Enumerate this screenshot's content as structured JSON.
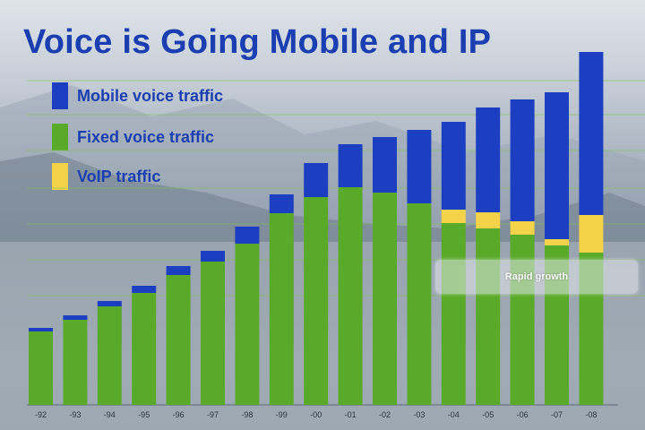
{
  "chart_data": {
    "type": "bar",
    "stacked": true,
    "title": "Voice is Going Mobile and IP",
    "categories": [
      "-92",
      "-93",
      "-94",
      "-95",
      "-96",
      "-97",
      "-98",
      "-99",
      "-00",
      "-01",
      "-02",
      "-03",
      "-04",
      "-05",
      "-06",
      "-07",
      "-08"
    ],
    "series": [
      {
        "name": "Fixed voice traffic",
        "color": "#5aaa2a",
        "values": [
          82,
          95,
          110,
          125,
          145,
          160,
          180,
          214,
          232,
          243,
          237,
          225,
          203,
          197,
          190,
          178,
          170
        ]
      },
      {
        "name": "VoIP traffic",
        "color": "#f4d34a",
        "values": [
          0,
          0,
          0,
          0,
          0,
          0,
          0,
          0,
          0,
          0,
          0,
          0,
          15,
          18,
          15,
          7,
          42
        ]
      },
      {
        "name": "Mobile voice traffic",
        "color": "#1c3fc2",
        "values": [
          4,
          5,
          6,
          8,
          10,
          12,
          19,
          21,
          38,
          48,
          62,
          82,
          98,
          117,
          136,
          164,
          182
        ]
      }
    ],
    "legend_position": "top-left",
    "grid": true,
    "annotations": [
      {
        "text": "Rapid growth"
      }
    ]
  }
}
